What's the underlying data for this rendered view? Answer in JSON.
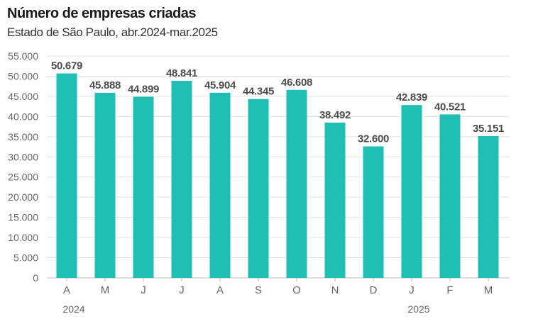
{
  "chart_data": {
    "type": "bar",
    "title": "Número de empresas criadas",
    "subtitle": "Estado de São Paulo, abr.2024-mar.2025",
    "categories": [
      "A",
      "M",
      "J",
      "J",
      "A",
      "S",
      "O",
      "N",
      "D",
      "J",
      "F",
      "M"
    ],
    "values": [
      50679,
      45888,
      44899,
      48841,
      45904,
      44345,
      46608,
      38492,
      32600,
      42839,
      40521,
      35151
    ],
    "value_labels": [
      "50.679",
      "45.888",
      "44.899",
      "48.841",
      "45.904",
      "44.345",
      "46.608",
      "38.492",
      "32.600",
      "42.839",
      "40.521",
      "35.151"
    ],
    "y_ticks": [
      0,
      5000,
      10000,
      15000,
      20000,
      25000,
      30000,
      35000,
      40000,
      45000,
      50000,
      55000
    ],
    "y_tick_labels": [
      "0",
      "5.000",
      "10.000",
      "15.000",
      "20.000",
      "25.000",
      "30.000",
      "35.000",
      "40.000",
      "45.000",
      "50.000",
      "55.000"
    ],
    "year_labels": [
      {
        "category_index": 0,
        "text": "2024"
      },
      {
        "category_index": 9,
        "text": "2025"
      }
    ],
    "ylim": [
      0,
      55000
    ],
    "grid": true,
    "bar_color": "#1fbfb4",
    "grid_color": "#e3e3e3",
    "axis_color": "#bdbdbd"
  }
}
